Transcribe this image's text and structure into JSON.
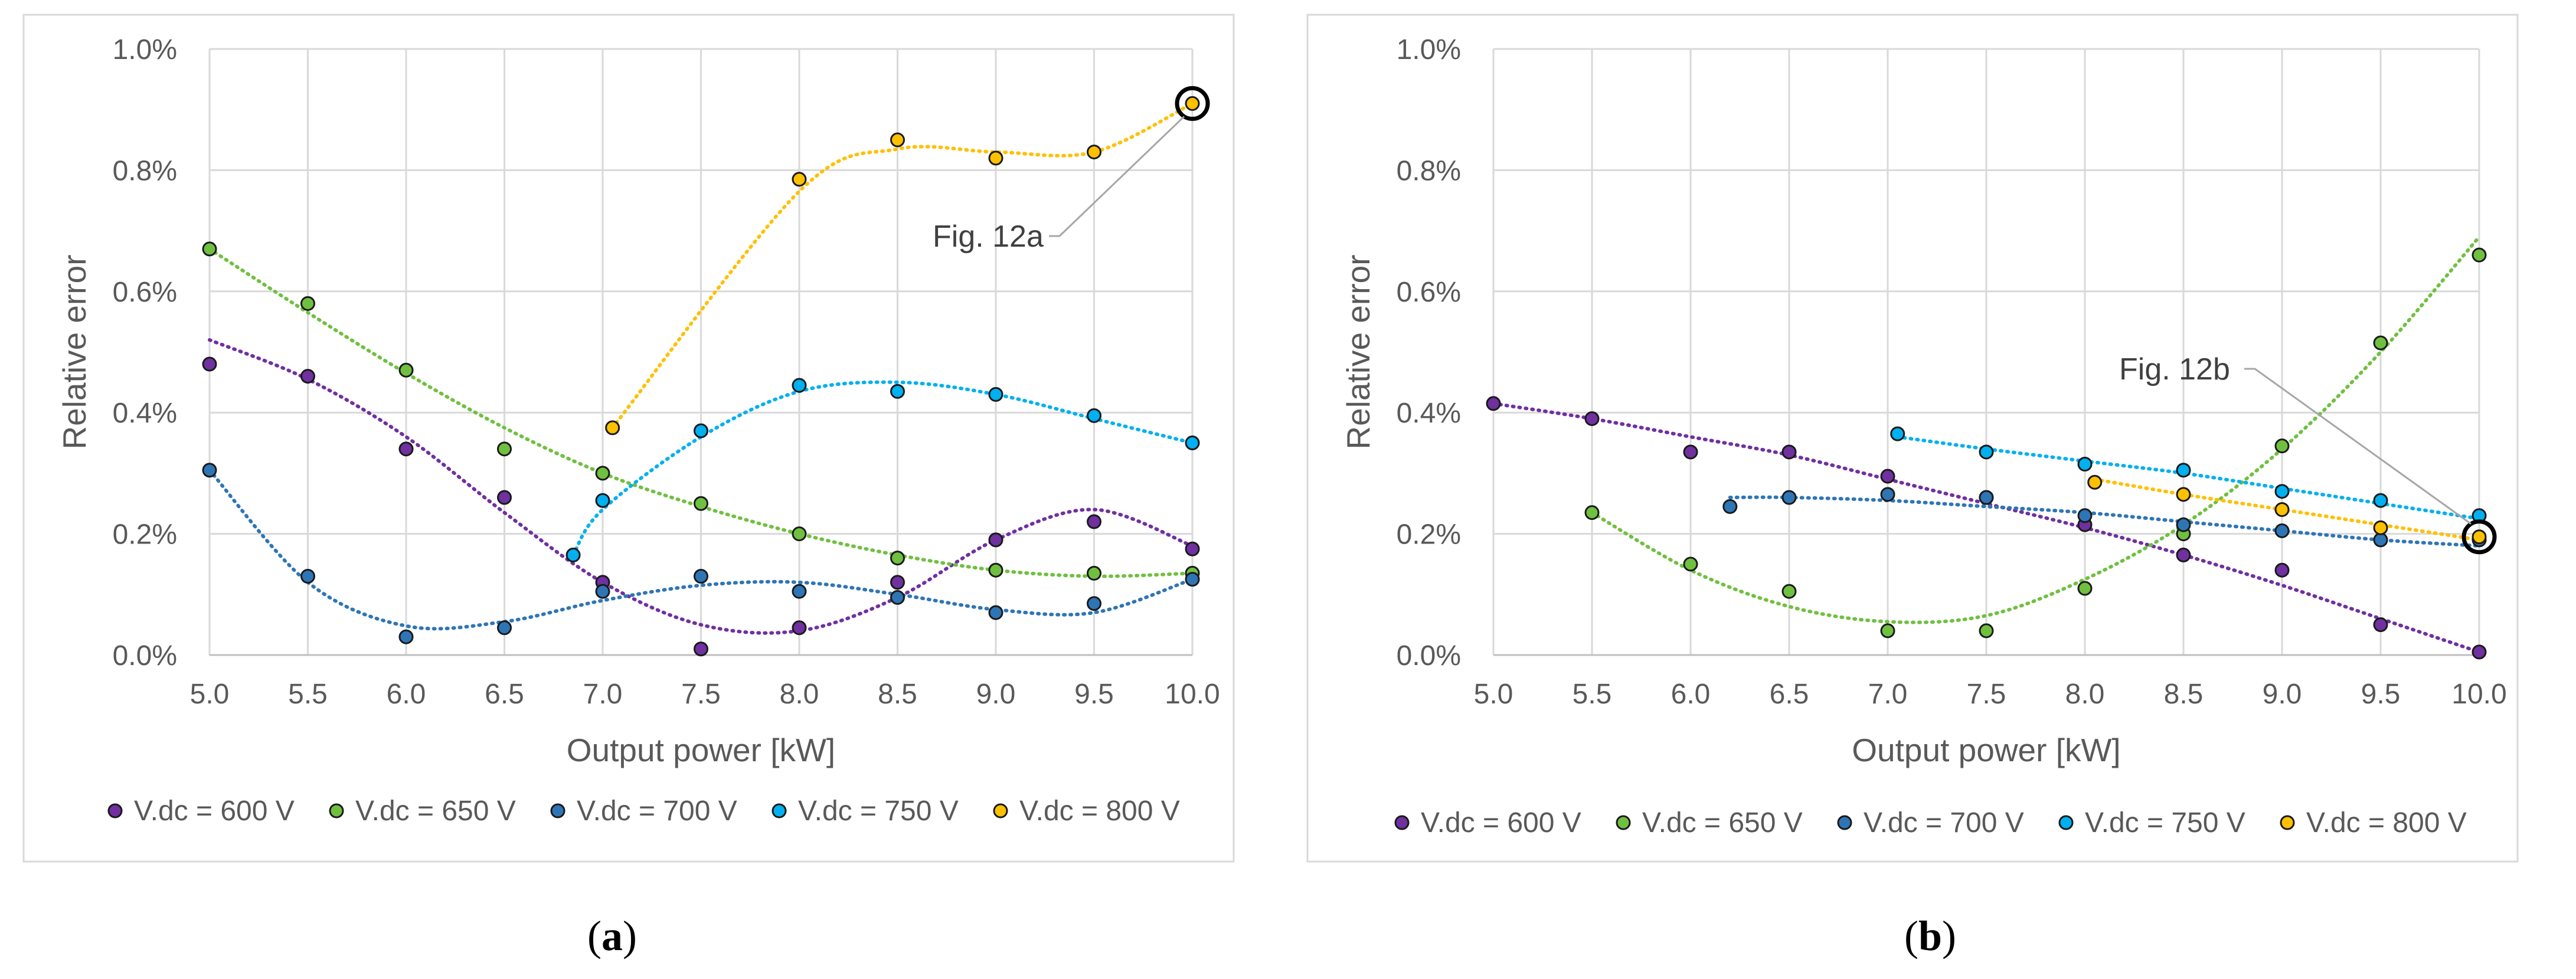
{
  "chart_data": [
    {
      "type": "scatter",
      "panel_label": "a",
      "xlabel": "Output power [kW]",
      "ylabel": "Relative error",
      "xlim": [
        5.0,
        10.0
      ],
      "ylim": [
        0.0,
        1.0
      ],
      "x_ticks": [
        "5.0",
        "5.5",
        "6.0",
        "6.5",
        "7.0",
        "7.5",
        "8.0",
        "8.5",
        "9.0",
        "9.5",
        "10.0"
      ],
      "y_ticks": [
        "0.0%",
        "0.2%",
        "0.4%",
        "0.6%",
        "0.8%",
        "1.0%"
      ],
      "grid": true,
      "legend_position": "bottom",
      "trendlines": "dotted polynomial",
      "annotation": {
        "text": "Fig. 12a",
        "target": [
          10.0,
          0.91
        ]
      },
      "series": [
        {
          "name": "V.dc = 600 V",
          "color": "#7030a0",
          "x": [
            5.0,
            5.5,
            6.0,
            6.5,
            7.0,
            7.5,
            8.0,
            8.5,
            9.0,
            9.5,
            10.0
          ],
          "y": [
            0.48,
            0.46,
            0.34,
            0.26,
            0.12,
            0.01,
            0.045,
            0.12,
            0.19,
            0.22,
            0.175
          ],
          "trend": [
            0.52,
            0.455,
            0.36,
            0.235,
            0.12,
            0.05,
            0.04,
            0.095,
            0.19,
            0.24,
            0.18
          ]
        },
        {
          "name": "V.dc = 650 V",
          "color": "#70c040",
          "x": [
            5.0,
            5.5,
            6.0,
            6.5,
            7.0,
            7.5,
            8.0,
            8.5,
            9.0,
            9.5,
            10.0
          ],
          "y": [
            0.67,
            0.58,
            0.47,
            0.34,
            0.3,
            0.25,
            0.2,
            0.16,
            0.14,
            0.135,
            0.135
          ],
          "trend": [
            0.67,
            0.565,
            0.465,
            0.375,
            0.3,
            0.245,
            0.2,
            0.165,
            0.14,
            0.13,
            0.135
          ]
        },
        {
          "name": "V.dc = 700 V",
          "color": "#2e75b6",
          "x": [
            5.0,
            5.5,
            6.0,
            6.5,
            7.0,
            7.5,
            8.0,
            8.5,
            9.0,
            9.5,
            10.0
          ],
          "y": [
            0.305,
            0.13,
            0.03,
            0.045,
            0.105,
            0.13,
            0.105,
            0.095,
            0.07,
            0.085,
            0.125
          ],
          "trend": [
            0.305,
            0.12,
            0.048,
            0.055,
            0.09,
            0.115,
            0.12,
            0.1,
            0.075,
            0.07,
            0.125
          ]
        },
        {
          "name": "V.dc = 750 V",
          "color": "#00b0f0",
          "x": [
            6.85,
            7.0,
            7.5,
            8.0,
            8.5,
            9.0,
            9.5,
            10.0
          ],
          "y": [
            0.165,
            0.255,
            0.37,
            0.445,
            0.435,
            0.43,
            0.395,
            0.35
          ],
          "trend": [
            0.165,
            0.24,
            0.36,
            0.435,
            0.45,
            0.43,
            0.39,
            0.35
          ]
        },
        {
          "name": "V.dc = 800 V",
          "color": "#ffc000",
          "x": [
            7.05,
            8.0,
            8.5,
            9.0,
            9.5,
            10.0
          ],
          "y": [
            0.375,
            0.785,
            0.85,
            0.82,
            0.83,
            0.91
          ],
          "trend": [
            0.375,
            0.765,
            0.835,
            0.83,
            0.83,
            0.91
          ]
        }
      ]
    },
    {
      "type": "scatter",
      "panel_label": "b",
      "xlabel": "Output power [kW]",
      "ylabel": "Relative error",
      "xlim": [
        5.0,
        10.0
      ],
      "ylim": [
        0.0,
        1.0
      ],
      "x_ticks": [
        "5.0",
        "5.5",
        "6.0",
        "6.5",
        "7.0",
        "7.5",
        "8.0",
        "8.5",
        "9.0",
        "9.5",
        "10.0"
      ],
      "y_ticks": [
        "0.0%",
        "0.2%",
        "0.4%",
        "0.6%",
        "0.8%",
        "1.0%"
      ],
      "grid": true,
      "legend_position": "bottom",
      "trendlines": "dotted polynomial",
      "annotation": {
        "text": "Fig. 12b",
        "target": [
          10.0,
          0.195
        ]
      },
      "series": [
        {
          "name": "V.dc = 600 V",
          "color": "#7030a0",
          "x": [
            5.0,
            5.5,
            6.0,
            6.5,
            7.0,
            7.5,
            8.0,
            8.5,
            9.0,
            9.5,
            10.0
          ],
          "y": [
            0.415,
            0.39,
            0.335,
            0.335,
            0.295,
            0.26,
            0.215,
            0.165,
            0.14,
            0.05,
            0.005
          ],
          "trend": [
            0.415,
            0.39,
            0.36,
            0.33,
            0.29,
            0.25,
            0.21,
            0.165,
            0.115,
            0.06,
            0.005
          ]
        },
        {
          "name": "V.dc = 650 V",
          "color": "#70c040",
          "x": [
            5.5,
            6.0,
            6.5,
            7.0,
            7.5,
            8.0,
            8.5,
            9.0,
            9.5,
            10.0
          ],
          "y": [
            0.235,
            0.15,
            0.105,
            0.04,
            0.04,
            0.11,
            0.2,
            0.345,
            0.515,
            0.66
          ],
          "trend": [
            0.235,
            0.14,
            0.08,
            0.055,
            0.065,
            0.125,
            0.215,
            0.34,
            0.5,
            0.69
          ]
        },
        {
          "name": "V.dc = 700 V",
          "color": "#2e75b6",
          "x": [
            6.2,
            6.5,
            7.0,
            7.5,
            8.0,
            8.5,
            9.0,
            9.5,
            10.0
          ],
          "y": [
            0.245,
            0.26,
            0.265,
            0.26,
            0.23,
            0.215,
            0.205,
            0.19,
            0.19
          ],
          "trend": [
            0.26,
            0.26,
            0.255,
            0.245,
            0.235,
            0.22,
            0.205,
            0.19,
            0.18
          ]
        },
        {
          "name": "V.dc = 750 V",
          "color": "#00b0f0",
          "x": [
            7.05,
            7.5,
            8.0,
            8.5,
            9.0,
            9.5,
            10.0
          ],
          "y": [
            0.365,
            0.335,
            0.315,
            0.305,
            0.27,
            0.255,
            0.23
          ],
          "trend": [
            0.36,
            0.34,
            0.32,
            0.3,
            0.275,
            0.25,
            0.225
          ]
        },
        {
          "name": "V.dc = 800 V",
          "color": "#ffc000",
          "x": [
            8.05,
            8.5,
            9.0,
            9.5,
            10.0
          ],
          "y": [
            0.285,
            0.265,
            0.24,
            0.21,
            0.195
          ],
          "trend": [
            0.29,
            0.265,
            0.24,
            0.215,
            0.19
          ]
        }
      ]
    }
  ],
  "captions": {
    "a": "a",
    "b": "b"
  }
}
